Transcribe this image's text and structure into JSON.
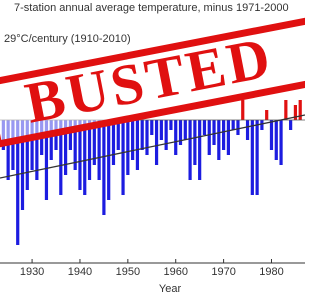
{
  "chart_data": {
    "type": "bar",
    "title": "7-station annual average temperature, minus 1971-2000",
    "subtitle": "29°C/century (1910-2010)",
    "stamp": "BUSTED",
    "x_label": "Year",
    "x": [
      1924,
      1925,
      1926,
      1927,
      1928,
      1929,
      1930,
      1931,
      1932,
      1933,
      1934,
      1935,
      1936,
      1937,
      1938,
      1939,
      1940,
      1941,
      1942,
      1943,
      1944,
      1945,
      1946,
      1947,
      1948,
      1949,
      1950,
      1951,
      1952,
      1953,
      1954,
      1955,
      1956,
      1957,
      1958,
      1959,
      1960,
      1961,
      1962,
      1963,
      1964,
      1965,
      1966,
      1967,
      1968,
      1969,
      1970,
      1971,
      1972,
      1973,
      1974,
      1975,
      1976,
      1977,
      1978,
      1979,
      1980,
      1981,
      1982,
      1983,
      1984,
      1985,
      1986
    ],
    "values": [
      -0.3,
      -0.6,
      -0.5,
      -1.25,
      -0.9,
      -0.7,
      -0.5,
      -0.6,
      -0.35,
      -0.8,
      -0.4,
      -0.3,
      -0.75,
      -0.55,
      -0.3,
      -0.5,
      -0.7,
      -0.75,
      -0.6,
      -0.45,
      -0.6,
      -0.95,
      -0.8,
      -0.45,
      -0.3,
      -0.75,
      -0.55,
      -0.4,
      -0.5,
      -0.3,
      -0.35,
      -0.15,
      -0.45,
      -0.2,
      -0.3,
      -0.1,
      -0.35,
      -0.25,
      -0.2,
      -0.6,
      -0.45,
      -0.6,
      -0.15,
      -0.35,
      -0.25,
      -0.4,
      -0.3,
      -0.35,
      -0.1,
      -0.15,
      0.2,
      -0.2,
      -0.75,
      -0.75,
      -0.1,
      0.1,
      -0.3,
      -0.4,
      -0.45,
      0.2,
      -0.1,
      0.15,
      0.2
    ],
    "negative_color": "#1c1ce0",
    "positive_color": "#e01010",
    "trend": {
      "x": [
        1923.3,
        1987
      ],
      "values": [
        -0.58,
        0.05
      ],
      "color": "#333333"
    },
    "xlim": [
      1923.3,
      1987
    ],
    "ylim": [
      -1.45,
      1.2
    ],
    "xticks": [
      1930,
      1940,
      1950,
      1960,
      1970,
      1980
    ]
  }
}
